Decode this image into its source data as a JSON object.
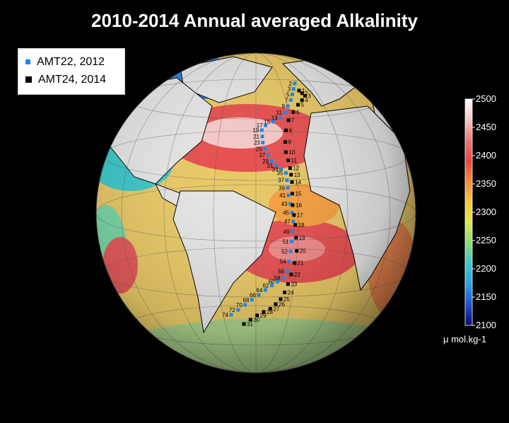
{
  "title": "2010-2014 Annual averaged Alkalinity",
  "legend": {
    "items": [
      {
        "label": "AMT22, 2012",
        "color": "#1e88e5"
      },
      {
        "label": "AMT24, 2014",
        "color": "#000000"
      }
    ]
  },
  "colorbar": {
    "min": 2100,
    "max": 2500,
    "ticks": [
      "2500",
      "2450",
      "2400",
      "2350",
      "2300",
      "2250",
      "2200",
      "2150",
      "2100"
    ],
    "unit_label": "μ mol.kg-1",
    "stops": [
      "#0a0a78",
      "#1e50d2",
      "#28a0e6",
      "#3cc8c8",
      "#8cdc78",
      "#dce650",
      "#f5c83c",
      "#f58c3c",
      "#e64646",
      "#eb7878",
      "#f5c8c8",
      "#ffffff"
    ]
  },
  "stations": {
    "amt22": [
      "2",
      "3",
      "5",
      "7",
      "9",
      "11",
      "13",
      "15",
      "17",
      "19",
      "21",
      "23",
      "25",
      "27",
      "29",
      "31",
      "33",
      "35",
      "37",
      "39",
      "41",
      "43",
      "45",
      "47",
      "49",
      "51",
      "52",
      "54",
      "56",
      "58",
      "60",
      "62",
      "64",
      "66",
      "68",
      "70",
      "72",
      "74"
    ],
    "amt24": [
      "1",
      "2",
      "3",
      "4",
      "5",
      "6",
      "7",
      "8",
      "9",
      "10",
      "11",
      "12",
      "13",
      "14",
      "15",
      "16",
      "17",
      "18",
      "19",
      "20",
      "21",
      "22",
      "23",
      "24",
      "25",
      "26",
      "27",
      "28",
      "29",
      "30",
      "31"
    ]
  }
}
